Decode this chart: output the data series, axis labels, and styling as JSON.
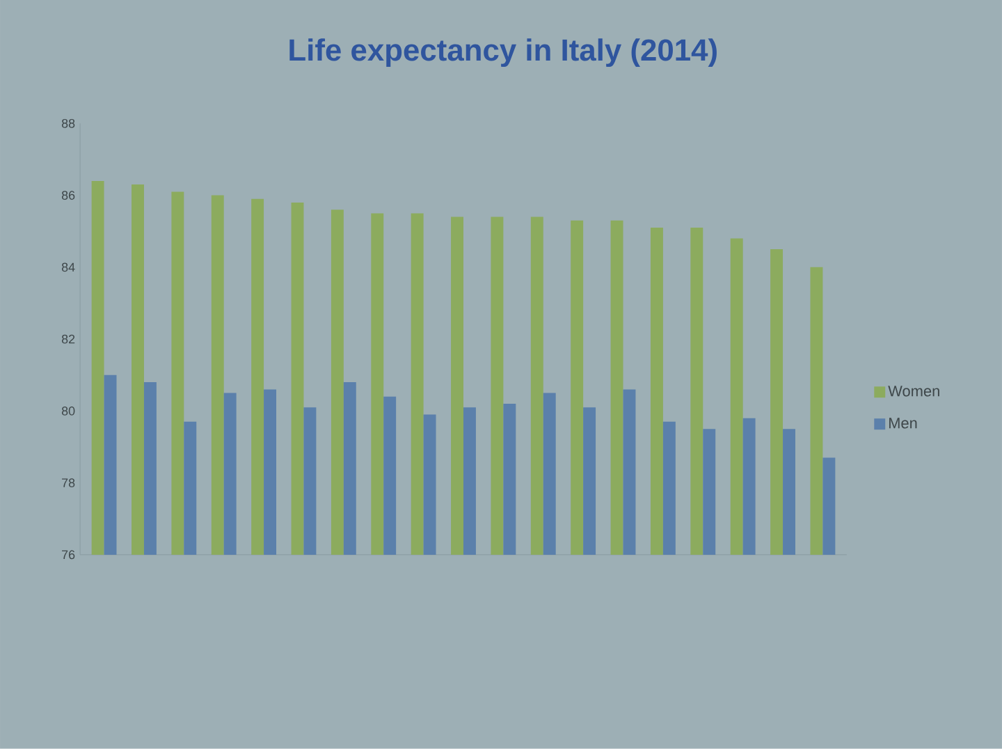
{
  "chart_data": {
    "type": "bar",
    "title": "Life expectancy in Italy (2014)",
    "categories": [
      null,
      null,
      null,
      null,
      null,
      null,
      null,
      null,
      null,
      null,
      null,
      null,
      null,
      null,
      null,
      null,
      null,
      null,
      null
    ],
    "series": [
      {
        "name": "Women",
        "color": "#8cab5e",
        "values": [
          86.4,
          86.3,
          86.1,
          86.0,
          85.9,
          85.8,
          85.6,
          85.5,
          85.5,
          85.4,
          85.4,
          85.4,
          85.3,
          85.3,
          85.1,
          85.1,
          84.8,
          84.5,
          84.0
        ]
      },
      {
        "name": "Men",
        "color": "#5b80ab",
        "values": [
          81.0,
          80.8,
          79.7,
          80.5,
          80.6,
          80.1,
          80.8,
          80.4,
          79.9,
          80.1,
          80.2,
          80.5,
          80.1,
          80.6,
          79.7,
          79.5,
          79.8,
          79.5,
          78.7
        ]
      }
    ],
    "ylim": [
      76,
      88
    ],
    "yticks": [
      76,
      78,
      80,
      82,
      84,
      86,
      88
    ],
    "legend": "right"
  }
}
